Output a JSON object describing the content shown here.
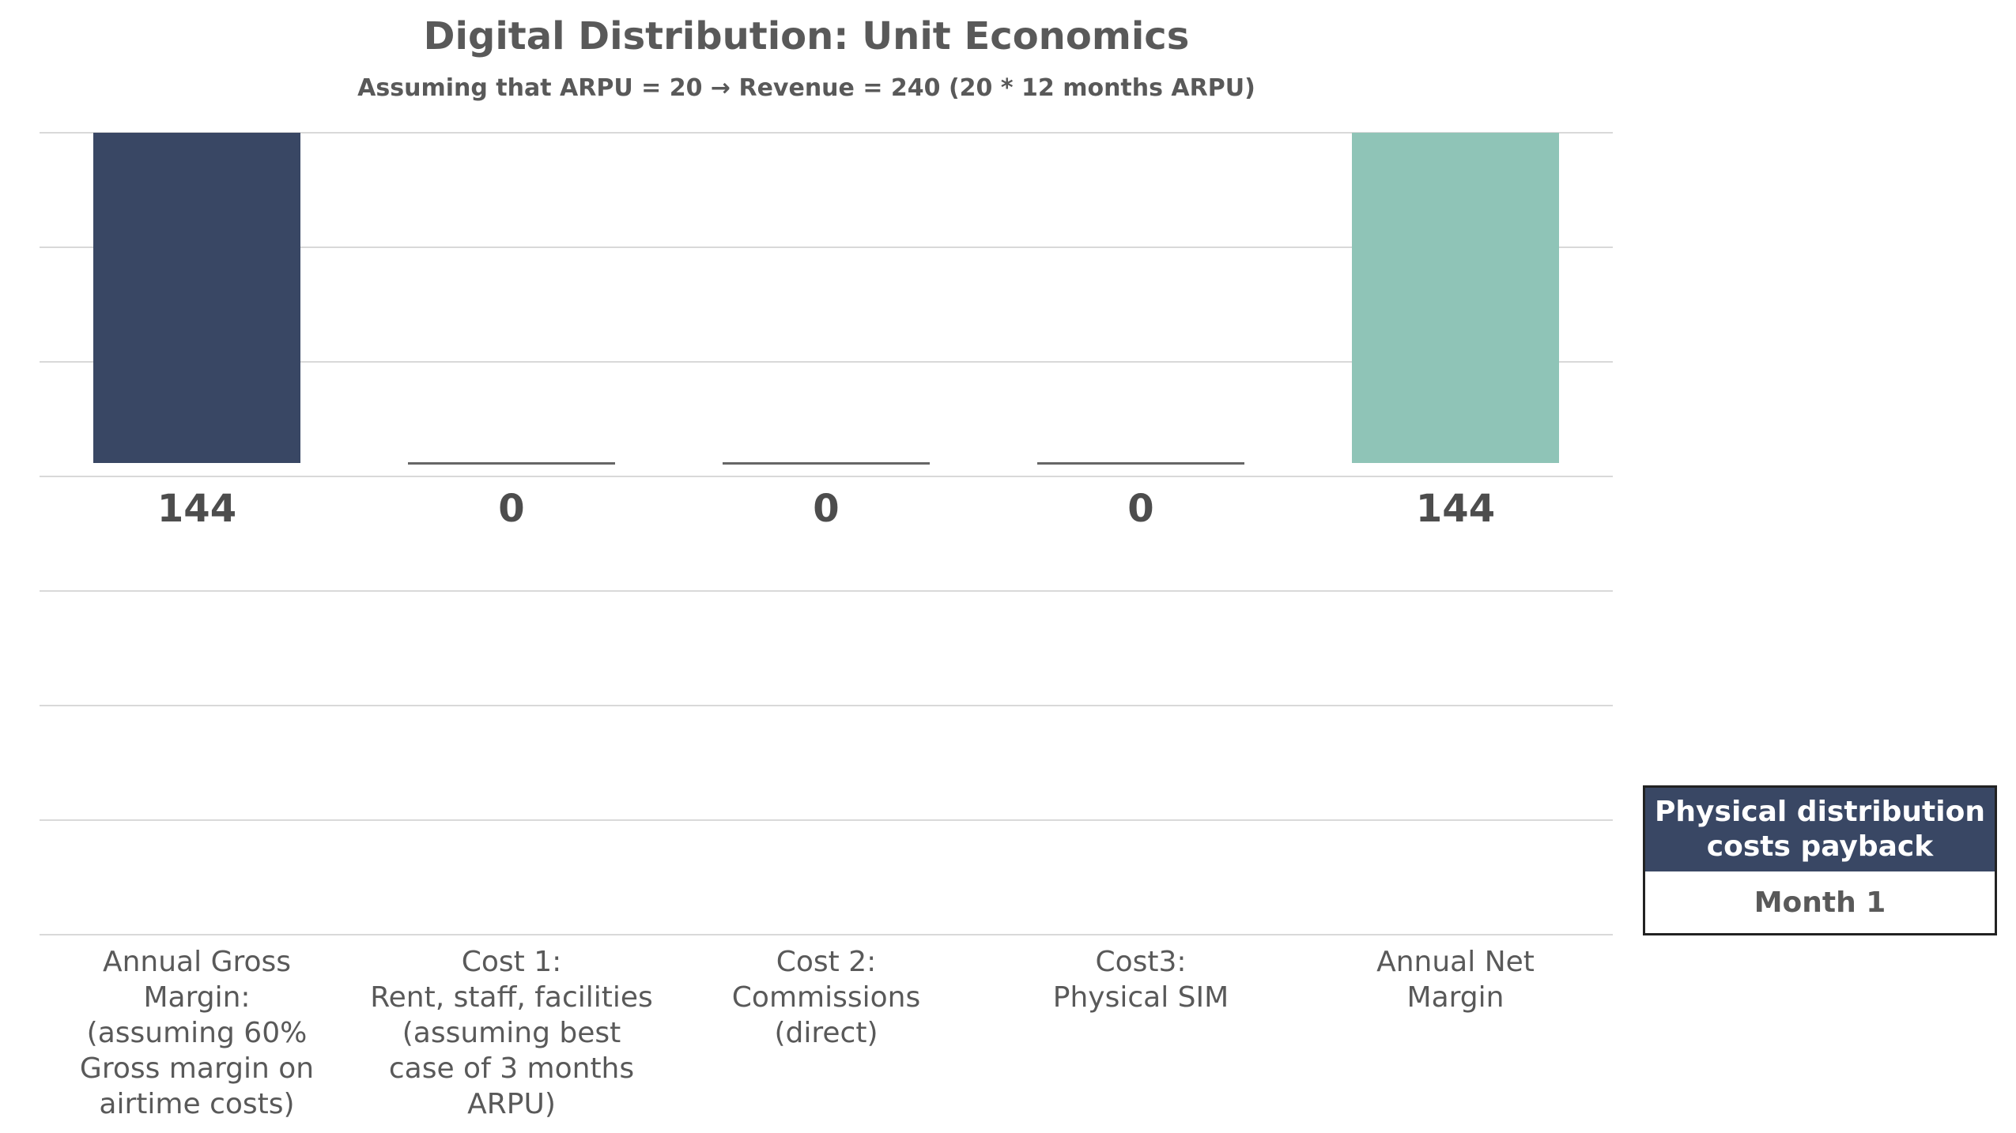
{
  "chart_data": {
    "type": "bar",
    "title": "Digital Distribution: Unit Economics",
    "subtitle": "Assuming that ARPU = 20 → Revenue = 240 (20 * 12 months ARPU)",
    "categories": [
      "Annual Gross\nMargin:\n(assuming 60%\nGross margin on\nairtime costs)",
      "Cost 1:\nRent, staff, facilities\n(assuming best\ncase of 3 months\nARPU)",
      "Cost 2:\nCommissions\n(direct)",
      "Cost3:\nPhysical SIM",
      "Annual Net\nMargin"
    ],
    "values": [
      144,
      0,
      0,
      0,
      144
    ],
    "data_labels": [
      "144",
      "0",
      "0",
      "0",
      "144"
    ],
    "colors": [
      "#394764",
      "#8fc4b7",
      "#8fc4b7",
      "#8fc4b7",
      "#8fc4b7"
    ],
    "zero_bar_color": "#666666",
    "ylim": [
      0,
      144
    ],
    "grid": true,
    "legend": "none",
    "xlabel": "",
    "ylabel": ""
  },
  "payback": {
    "header": "Physical distribution costs payback",
    "value": "Month 1"
  }
}
